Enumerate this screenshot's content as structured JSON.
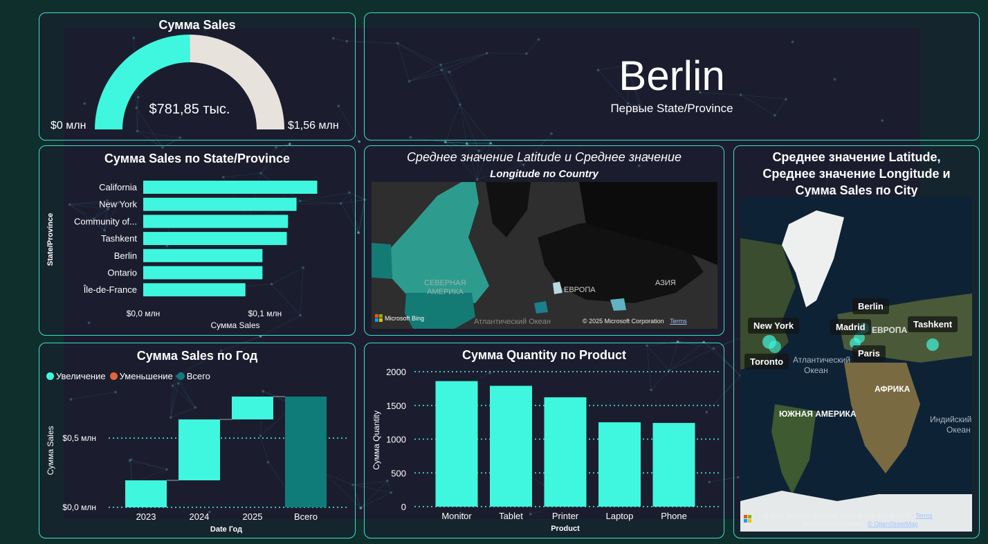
{
  "gauge_card": {
    "title": "Сумма Sales",
    "value_label": "$781,85 тыс.",
    "min_label": "$0 млн",
    "max_label": "$1,56 млн",
    "fill_color": "#3ff7de",
    "track_color": "#e8e2dc"
  },
  "kpi_card": {
    "value": "Berlin",
    "caption": "Первые State/Province"
  },
  "filled_map": {
    "title_line1": "Среднее значение Latitude и Среднее значение",
    "title_line2": "Longitude по Country",
    "label_na": "СЕВЕРНАЯ",
    "label_na2": "АМЕРИКА",
    "label_eu": "ЕВРОПА",
    "label_as": "АЗИЯ",
    "label_ocean": "Атлантический Океан",
    "brand": "Microsoft Bing",
    "copyright": "© 2025 Microsoft Corporation",
    "terms": "Terms"
  },
  "bubble_map": {
    "title_line1": "Среднее значение Latitude,",
    "title_line2": "Среднее значение Longitude и",
    "title_line3": "Сумма Sales по City",
    "cities": [
      "New York",
      "Berlin",
      "Madrid",
      "Tashkent",
      "Toronto",
      "Paris"
    ],
    "label_atl1": "Атлантический",
    "label_atl2": "Океан",
    "label_eu": "ЕВРОПА",
    "label_af": "АФРИКА",
    "label_sa": "ЮЖНАЯ АМЕРИКА",
    "label_ind1": "Индийский",
    "label_ind2": "Океан",
    "copyright1": "© 2025 TomTom, Earthstar Geographics SIO, © 2025",
    "terms": "Terms",
    "copyright2": "Microsoft Corporation,",
    "osm": "© OpenStreetMap"
  },
  "chart_data": [
    {
      "type": "gauge",
      "title": "Сумма Sales",
      "value": 781850,
      "min": 0,
      "max": 1560000
    },
    {
      "type": "bar",
      "orientation": "horizontal",
      "title": "Сумма Sales по State/Province",
      "categories": [
        "California",
        "New York",
        "Community of...",
        "Tashkent",
        "Berlin",
        "Ontario",
        "Île-de-France"
      ],
      "values": [
        0.143,
        0.126,
        0.119,
        0.118,
        0.098,
        0.098,
        0.084
      ],
      "xlabel": "Сумма Sales",
      "ylabel": "State/Province",
      "xlim": [
        0,
        0.145
      ],
      "ticks": [
        0,
        0.1
      ],
      "tick_labels": [
        "$0,0 млн",
        "$0,1 млн"
      ],
      "color": "#3ff7de"
    },
    {
      "type": "waterfall",
      "title": "Сумма Sales по Год",
      "legend": [
        "Увеличение",
        "Уменьшение",
        "Всего"
      ],
      "legend_colors": [
        "#3ff7de",
        "#e0673a",
        "#0f7c7a"
      ],
      "categories": [
        "2023",
        "2024",
        "2025",
        "Всего"
      ],
      "increments": [
        0.195,
        0.44,
        0.165
      ],
      "total": 0.8,
      "xlabel": "Date Год",
      "ylabel": "Сумма Sales",
      "ylim": [
        0,
        1.0
      ],
      "ticks": [
        0,
        0.5
      ],
      "tick_labels": [
        "$0,0 млн",
        "$0,5 млн"
      ]
    },
    {
      "type": "bar",
      "title": "Сумма Quantity по Product",
      "categories": [
        "Monitor",
        "Tablet",
        "Printer",
        "Laptop",
        "Phone"
      ],
      "values": [
        1860,
        1790,
        1620,
        1250,
        1240
      ],
      "xlabel": "Product",
      "ylabel": "Сумма Quantity",
      "ylim": [
        0,
        2000
      ],
      "ticks": [
        0,
        500,
        1000,
        1500,
        2000
      ],
      "tick_labels": [
        "0",
        "500",
        "1000",
        "1500",
        "2000"
      ],
      "color": "#3ff7de"
    }
  ]
}
